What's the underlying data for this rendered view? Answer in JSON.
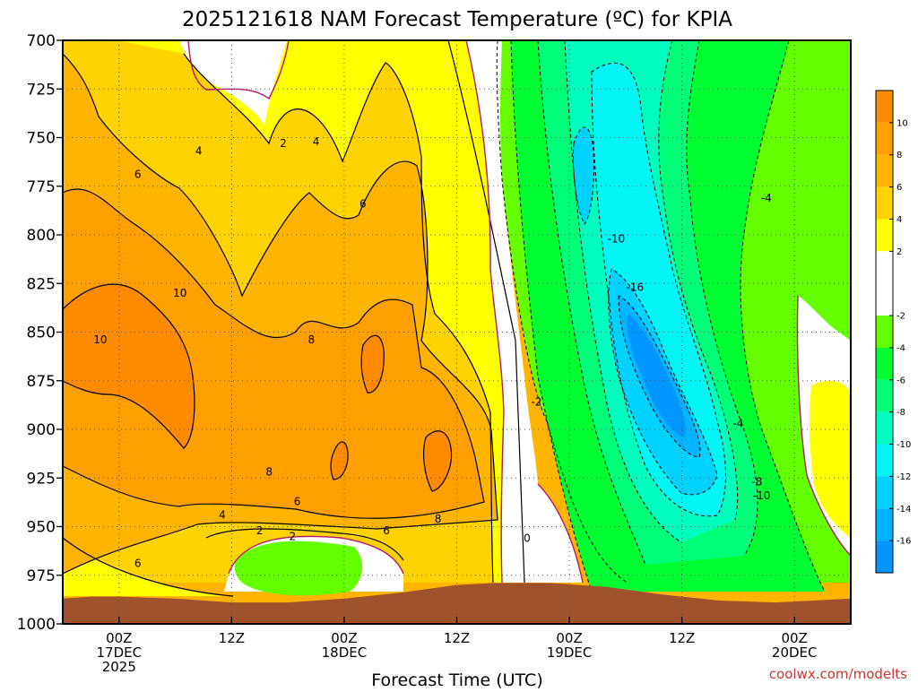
{
  "chart_data": {
    "type": "contour",
    "title": "2025121618 NAM Forecast Temperature (ºC) for KPIA",
    "xlabel": "Forecast Time (UTC)",
    "ylabel": "",
    "credit": "coolwx.com/modelts",
    "y_ticks": [
      "700",
      "725",
      "750",
      "775",
      "800",
      "825",
      "850",
      "875",
      "900",
      "925",
      "950",
      "975",
      "1000"
    ],
    "x_ticks": [
      {
        "hour": 6,
        "lines": [
          "00Z",
          "17DEC",
          "2025"
        ]
      },
      {
        "hour": 18,
        "lines": [
          "12Z"
        ]
      },
      {
        "hour": 30,
        "lines": [
          "00Z",
          "18DEC"
        ]
      },
      {
        "hour": 42,
        "lines": [
          "12Z"
        ]
      },
      {
        "hour": 54,
        "lines": [
          "00Z",
          "19DEC"
        ]
      },
      {
        "hour": 66,
        "lines": [
          "12Z"
        ]
      },
      {
        "hour": 78,
        "lines": [
          "00Z",
          "20DEC"
        ]
      }
    ],
    "x_range_hours": [
      0,
      84
    ],
    "y_range_hpa": [
      700,
      1000
    ],
    "colorbar": {
      "labels": [
        "10",
        "8",
        "6",
        "4",
        "2",
        "-2",
        "-4",
        "-6",
        "-8",
        "-10",
        "-12",
        "-14",
        "-16"
      ],
      "bands": [
        {
          "lo": 10,
          "hi": 12,
          "color": "#ff8c00"
        },
        {
          "lo": 8,
          "hi": 10,
          "color": "#ffa000"
        },
        {
          "lo": 6,
          "hi": 8,
          "color": "#ffb400"
        },
        {
          "lo": 4,
          "hi": 6,
          "color": "#ffd200"
        },
        {
          "lo": 2,
          "hi": 4,
          "color": "#ffff00"
        },
        {
          "lo": -2,
          "hi": 2,
          "color": "#ffffff"
        },
        {
          "lo": -4,
          "hi": -2,
          "color": "#64ff00"
        },
        {
          "lo": -6,
          "hi": -4,
          "color": "#00ff32"
        },
        {
          "lo": -8,
          "hi": -6,
          "color": "#00ff78"
        },
        {
          "lo": -10,
          "hi": -8,
          "color": "#00ffbe"
        },
        {
          "lo": -12,
          "hi": -10,
          "color": "#00f5f5"
        },
        {
          "lo": -14,
          "hi": -12,
          "color": "#00d2ff"
        },
        {
          "lo": -16,
          "hi": -14,
          "color": "#00b4ff"
        },
        {
          "lo": -18,
          "hi": -16,
          "color": "#0096ff"
        }
      ]
    },
    "contour_labels": [
      {
        "text": "2",
        "hour": 23.5,
        "p": 753
      },
      {
        "text": "4",
        "hour": 14.5,
        "p": 757
      },
      {
        "text": "4",
        "hour": 27,
        "p": 752
      },
      {
        "text": "6",
        "hour": 8,
        "p": 769
      },
      {
        "text": "6",
        "hour": 32,
        "p": 784
      },
      {
        "text": "10",
        "hour": 12.5,
        "p": 830
      },
      {
        "text": "10",
        "hour": 4,
        "p": 854
      },
      {
        "text": "8",
        "hour": 26.5,
        "p": 854
      },
      {
        "text": "8",
        "hour": 22,
        "p": 922
      },
      {
        "text": "6",
        "hour": 25,
        "p": 937
      },
      {
        "text": "4",
        "hour": 17,
        "p": 944
      },
      {
        "text": "2",
        "hour": 21,
        "p": 952
      },
      {
        "text": "2",
        "hour": 24.5,
        "p": 955
      },
      {
        "text": "6",
        "hour": 34.5,
        "p": 952
      },
      {
        "text": "8",
        "hour": 40,
        "p": 946
      },
      {
        "text": "6",
        "hour": 8,
        "p": 969
      },
      {
        "text": "-2",
        "hour": 50.5,
        "p": 886
      },
      {
        "text": "0",
        "hour": 49.5,
        "p": 956
      },
      {
        "text": "-10",
        "hour": 59,
        "p": 802
      },
      {
        "text": "-16",
        "hour": 61,
        "p": 827
      },
      {
        "text": "-4",
        "hour": 75,
        "p": 781
      },
      {
        "text": "-4",
        "hour": 72,
        "p": 897
      },
      {
        "text": "-8",
        "hour": 74,
        "p": 927
      },
      {
        "text": "-10",
        "hour": 74.5,
        "p": 934
      }
    ],
    "surface_pressure_hpa": [
      {
        "hour": 0,
        "p": 987
      },
      {
        "hour": 3,
        "p": 986
      },
      {
        "hour": 6,
        "p": 986
      },
      {
        "hour": 12,
        "p": 987
      },
      {
        "hour": 18,
        "p": 989
      },
      {
        "hour": 24,
        "p": 989
      },
      {
        "hour": 30,
        "p": 987
      },
      {
        "hour": 36,
        "p": 984
      },
      {
        "hour": 42,
        "p": 980
      },
      {
        "hour": 46,
        "p": 979
      },
      {
        "hour": 52,
        "p": 979
      },
      {
        "hour": 58,
        "p": 981
      },
      {
        "hour": 64,
        "p": 985
      },
      {
        "hour": 70,
        "p": 988
      },
      {
        "hour": 76,
        "p": 989
      },
      {
        "hour": 80,
        "p": 988
      },
      {
        "hour": 84,
        "p": 987
      }
    ]
  }
}
